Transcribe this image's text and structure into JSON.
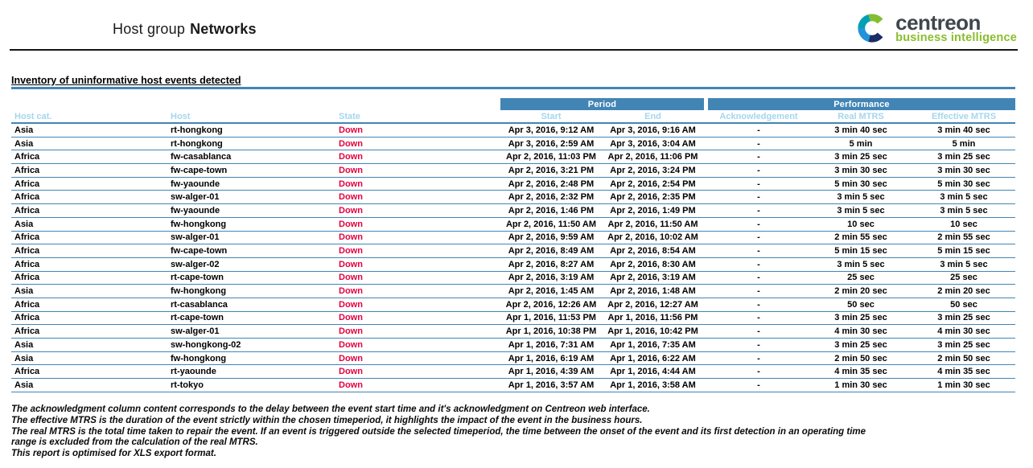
{
  "report": {
    "title_prefix": "Host group",
    "title_name": "Networks",
    "section_title": "Inventory of uninformative host events detected"
  },
  "logo": {
    "name": "centreon",
    "tagline": "business intelligence"
  },
  "colors": {
    "banner_blue": "#4285b5",
    "header_label_blue": "#a5d6ef",
    "state_down_red": "#e4003f",
    "logo_gray": "#40464d",
    "logo_green": "#8bbd2d",
    "logo_icon_green": "#84bd32",
    "logo_icon_teal": "#00a0b4",
    "logo_icon_blue": "#2293d9",
    "logo_icon_navy": "#1b2d68"
  },
  "table": {
    "group_headers": {
      "period": "Period",
      "performance": "Performance"
    },
    "columns": {
      "host_cat": "Host cat.",
      "host": "Host",
      "state": "State",
      "start": "Start",
      "end": "End",
      "ack": "Acknowledgement",
      "real_mtrs": "Real MTRS",
      "effective_mtrs": "Effective MTRS"
    },
    "rows": [
      {
        "host_cat": "Asia",
        "host": "rt-hongkong",
        "state": "Down",
        "start": "Apr 3, 2016, 9:12 AM",
        "end": "Apr 3, 2016, 9:16 AM",
        "ack": "-",
        "real_mtrs": "3 min 40 sec",
        "effective_mtrs": "3 min 40 sec"
      },
      {
        "host_cat": "Asia",
        "host": "rt-hongkong",
        "state": "Down",
        "start": "Apr 3, 2016, 2:59 AM",
        "end": "Apr 3, 2016, 3:04 AM",
        "ack": "-",
        "real_mtrs": "5 min",
        "effective_mtrs": "5 min"
      },
      {
        "host_cat": "Africa",
        "host": "fw-casablanca",
        "state": "Down",
        "start": "Apr 2, 2016, 11:03 PM",
        "end": "Apr 2, 2016, 11:06 PM",
        "ack": "-",
        "real_mtrs": "3 min 25 sec",
        "effective_mtrs": "3 min 25 sec"
      },
      {
        "host_cat": "Africa",
        "host": "fw-cape-town",
        "state": "Down",
        "start": "Apr 2, 2016, 3:21 PM",
        "end": "Apr 2, 2016, 3:24 PM",
        "ack": "-",
        "real_mtrs": "3 min 30 sec",
        "effective_mtrs": "3 min 30 sec"
      },
      {
        "host_cat": "Africa",
        "host": "fw-yaounde",
        "state": "Down",
        "start": "Apr 2, 2016, 2:48 PM",
        "end": "Apr 2, 2016, 2:54 PM",
        "ack": "-",
        "real_mtrs": "5 min 30 sec",
        "effective_mtrs": "5 min 30 sec"
      },
      {
        "host_cat": "Africa",
        "host": "sw-alger-01",
        "state": "Down",
        "start": "Apr 2, 2016, 2:32 PM",
        "end": "Apr 2, 2016, 2:35 PM",
        "ack": "-",
        "real_mtrs": "3 min 5 sec",
        "effective_mtrs": "3 min 5 sec"
      },
      {
        "host_cat": "Africa",
        "host": "fw-yaounde",
        "state": "Down",
        "start": "Apr 2, 2016, 1:46 PM",
        "end": "Apr 2, 2016, 1:49 PM",
        "ack": "-",
        "real_mtrs": "3 min 5 sec",
        "effective_mtrs": "3 min 5 sec"
      },
      {
        "host_cat": "Asia",
        "host": "fw-hongkong",
        "state": "Down",
        "start": "Apr 2, 2016, 11:50 AM",
        "end": "Apr 2, 2016, 11:50 AM",
        "ack": "-",
        "real_mtrs": "10 sec",
        "effective_mtrs": "10 sec"
      },
      {
        "host_cat": "Africa",
        "host": "sw-alger-01",
        "state": "Down",
        "start": "Apr 2, 2016, 9:59 AM",
        "end": "Apr 2, 2016, 10:02 AM",
        "ack": "-",
        "real_mtrs": "2 min 55 sec",
        "effective_mtrs": "2 min 55 sec"
      },
      {
        "host_cat": "Africa",
        "host": "fw-cape-town",
        "state": "Down",
        "start": "Apr 2, 2016, 8:49 AM",
        "end": "Apr 2, 2016, 8:54 AM",
        "ack": "-",
        "real_mtrs": "5 min 15 sec",
        "effective_mtrs": "5 min 15 sec"
      },
      {
        "host_cat": "Africa",
        "host": "sw-alger-02",
        "state": "Down",
        "start": "Apr 2, 2016, 8:27 AM",
        "end": "Apr 2, 2016, 8:30 AM",
        "ack": "-",
        "real_mtrs": "3 min 5 sec",
        "effective_mtrs": "3 min 5 sec"
      },
      {
        "host_cat": "Africa",
        "host": "rt-cape-town",
        "state": "Down",
        "start": "Apr 2, 2016, 3:19 AM",
        "end": "Apr 2, 2016, 3:19 AM",
        "ack": "-",
        "real_mtrs": "25 sec",
        "effective_mtrs": "25 sec"
      },
      {
        "host_cat": "Asia",
        "host": "fw-hongkong",
        "state": "Down",
        "start": "Apr 2, 2016, 1:45 AM",
        "end": "Apr 2, 2016, 1:48 AM",
        "ack": "-",
        "real_mtrs": "2 min 20 sec",
        "effective_mtrs": "2 min 20 sec"
      },
      {
        "host_cat": "Africa",
        "host": "rt-casablanca",
        "state": "Down",
        "start": "Apr 2, 2016, 12:26 AM",
        "end": "Apr 2, 2016, 12:27 AM",
        "ack": "-",
        "real_mtrs": "50 sec",
        "effective_mtrs": "50 sec"
      },
      {
        "host_cat": "Africa",
        "host": "rt-cape-town",
        "state": "Down",
        "start": "Apr 1, 2016, 11:53 PM",
        "end": "Apr 1, 2016, 11:56 PM",
        "ack": "-",
        "real_mtrs": "3 min 25 sec",
        "effective_mtrs": "3 min 25 sec"
      },
      {
        "host_cat": "Africa",
        "host": "sw-alger-01",
        "state": "Down",
        "start": "Apr 1, 2016, 10:38 PM",
        "end": "Apr 1, 2016, 10:42 PM",
        "ack": "-",
        "real_mtrs": "4 min 30 sec",
        "effective_mtrs": "4 min 30 sec"
      },
      {
        "host_cat": "Asia",
        "host": "sw-hongkong-02",
        "state": "Down",
        "start": "Apr 1, 2016, 7:31 AM",
        "end": "Apr 1, 2016, 7:35 AM",
        "ack": "-",
        "real_mtrs": "3 min 25 sec",
        "effective_mtrs": "3 min 25 sec"
      },
      {
        "host_cat": "Asia",
        "host": "fw-hongkong",
        "state": "Down",
        "start": "Apr 1, 2016, 6:19 AM",
        "end": "Apr 1, 2016, 6:22 AM",
        "ack": "-",
        "real_mtrs": "2 min 50 sec",
        "effective_mtrs": "2 min 50 sec"
      },
      {
        "host_cat": "Africa",
        "host": "rt-yaounde",
        "state": "Down",
        "start": "Apr 1, 2016, 4:39 AM",
        "end": "Apr 1, 2016, 4:44 AM",
        "ack": "-",
        "real_mtrs": "4 min 35 sec",
        "effective_mtrs": "4 min 35 sec"
      },
      {
        "host_cat": "Asia",
        "host": "rt-tokyo",
        "state": "Down",
        "start": "Apr 1, 2016, 3:57 AM",
        "end": "Apr 1, 2016, 3:58 AM",
        "ack": "-",
        "real_mtrs": "1 min 30 sec",
        "effective_mtrs": "1 min 30 sec"
      }
    ]
  },
  "footnotes": [
    "The acknowledgment column content corresponds to the delay between the event start time and it's acknowledgment on Centreon web interface.",
    "The effective MTRS is the duration of the event strictly within the chosen timeperiod, it highlights the impact of the event in the business hours.",
    "The real MTRS is the total time taken to repair the event. If an event is triggered outside the selected timeperiod, the time between the onset of the event and its first detection in an operating time",
    "range  is excluded from the calculation of the real MTRS.",
    "This report is optimised for XLS export format."
  ]
}
